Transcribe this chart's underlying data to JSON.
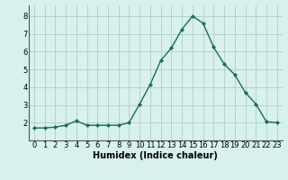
{
  "x": [
    0,
    1,
    2,
    3,
    4,
    5,
    6,
    7,
    8,
    9,
    10,
    11,
    12,
    13,
    14,
    15,
    16,
    17,
    18,
    19,
    20,
    21,
    22,
    23
  ],
  "y": [
    1.7,
    1.7,
    1.75,
    1.85,
    2.1,
    1.85,
    1.85,
    1.85,
    1.85,
    2.0,
    3.05,
    4.15,
    5.5,
    6.2,
    7.25,
    8.0,
    7.6,
    6.25,
    5.3,
    4.7,
    3.7,
    3.05,
    2.05,
    2.0
  ],
  "line_color": "#1a6b5a",
  "marker": "D",
  "marker_size": 2,
  "bg_color": "#d8f0ee",
  "grid_color": "#aecfcb",
  "xlabel": "Humidex (Indice chaleur)",
  "xlim": [
    -0.5,
    23.5
  ],
  "ylim": [
    1.0,
    8.6
  ],
  "yticks": [
    2,
    3,
    4,
    5,
    6,
    7,
    8
  ],
  "xticks": [
    0,
    1,
    2,
    3,
    4,
    5,
    6,
    7,
    8,
    9,
    10,
    11,
    12,
    13,
    14,
    15,
    16,
    17,
    18,
    19,
    20,
    21,
    22,
    23
  ],
  "xtick_labels": [
    "0",
    "1",
    "2",
    "3",
    "4",
    "5",
    "6",
    "7",
    "8",
    "9",
    "10",
    "11",
    "12",
    "13",
    "14",
    "15",
    "16",
    "17",
    "18",
    "19",
    "20",
    "21",
    "22",
    "23"
  ],
  "tick_fontsize": 6,
  "xlabel_fontsize": 7
}
